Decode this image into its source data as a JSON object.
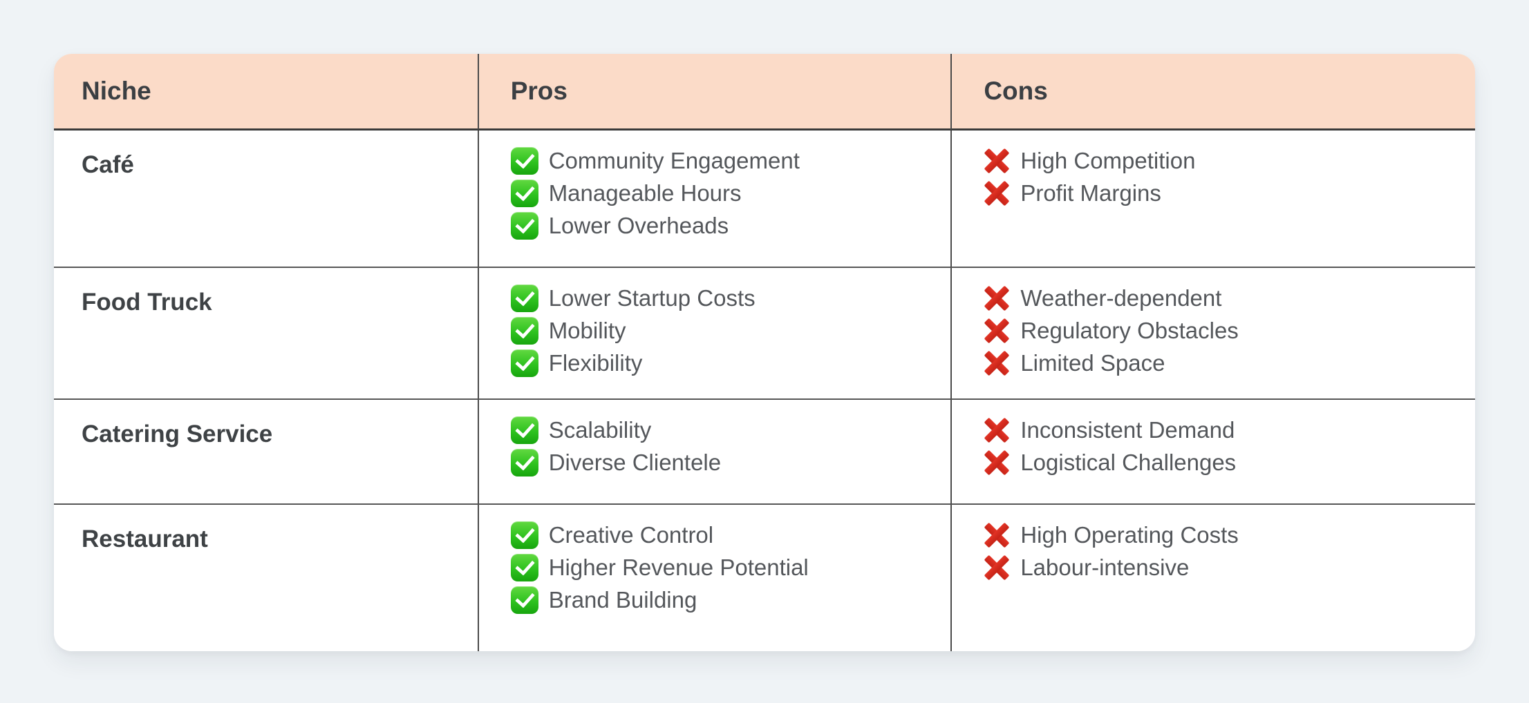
{
  "table": {
    "header": {
      "background_color": "#fbdbc8",
      "text_color": "#3b3f43",
      "columns": [
        {
          "id": "niche",
          "label": "Niche"
        },
        {
          "id": "pros",
          "label": "Pros"
        },
        {
          "id": "cons",
          "label": "Cons"
        }
      ]
    },
    "icons": {
      "pro": "green-check-icon",
      "con": "red-cross-icon"
    },
    "colors": {
      "pro_check_green": "#2ec21f",
      "con_cross_red": "#d8291c",
      "body_text": "#54575b",
      "niche_text": "#3e4245",
      "divider": "#4a4a4a",
      "page_background": "#eff3f6",
      "card_background": "#ffffff"
    },
    "rows": [
      {
        "niche": "Café",
        "pros": [
          "Community Engagement",
          "Manageable Hours",
          "Lower Overheads"
        ],
        "cons": [
          "High Competition",
          "Profit Margins"
        ]
      },
      {
        "niche": "Food Truck",
        "pros": [
          "Lower Startup Costs",
          "Mobility",
          "Flexibility"
        ],
        "cons": [
          "Weather-dependent",
          "Regulatory Obstacles",
          "Limited Space"
        ]
      },
      {
        "niche": "Catering Service",
        "pros": [
          "Scalability",
          "Diverse Clientele"
        ],
        "cons": [
          "Inconsistent Demand",
          "Logistical Challenges"
        ]
      },
      {
        "niche": "Restaurant",
        "pros": [
          "Creative Control",
          "Higher Revenue Potential",
          "Brand Building"
        ],
        "cons": [
          "High Operating Costs",
          "Labour-intensive"
        ]
      }
    ]
  }
}
